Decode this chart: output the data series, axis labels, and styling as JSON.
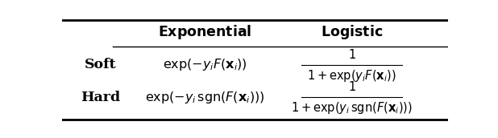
{
  "col_headers": [
    "",
    "Exponential",
    "Logistic"
  ],
  "rows": [
    {
      "label": "\\textbf{Soft}",
      "exp": "$\\exp(-y_i F(\\mathbf{x}_i))$",
      "log_num": "$1$",
      "log_den": "$1+\\exp(y_i F(\\mathbf{x}_i))$"
    },
    {
      "label": "\\textbf{Hard}",
      "exp": "$\\exp(-y_i \\,\\mathrm{sgn}(F(\\mathbf{x}_i)))$",
      "log_num": "$1$",
      "log_den": "$1+\\exp(y_i \\,\\mathrm{sgn}(F(\\mathbf{x}_i)))$"
    }
  ],
  "background_color": "#ffffff",
  "text_color": "#000000"
}
